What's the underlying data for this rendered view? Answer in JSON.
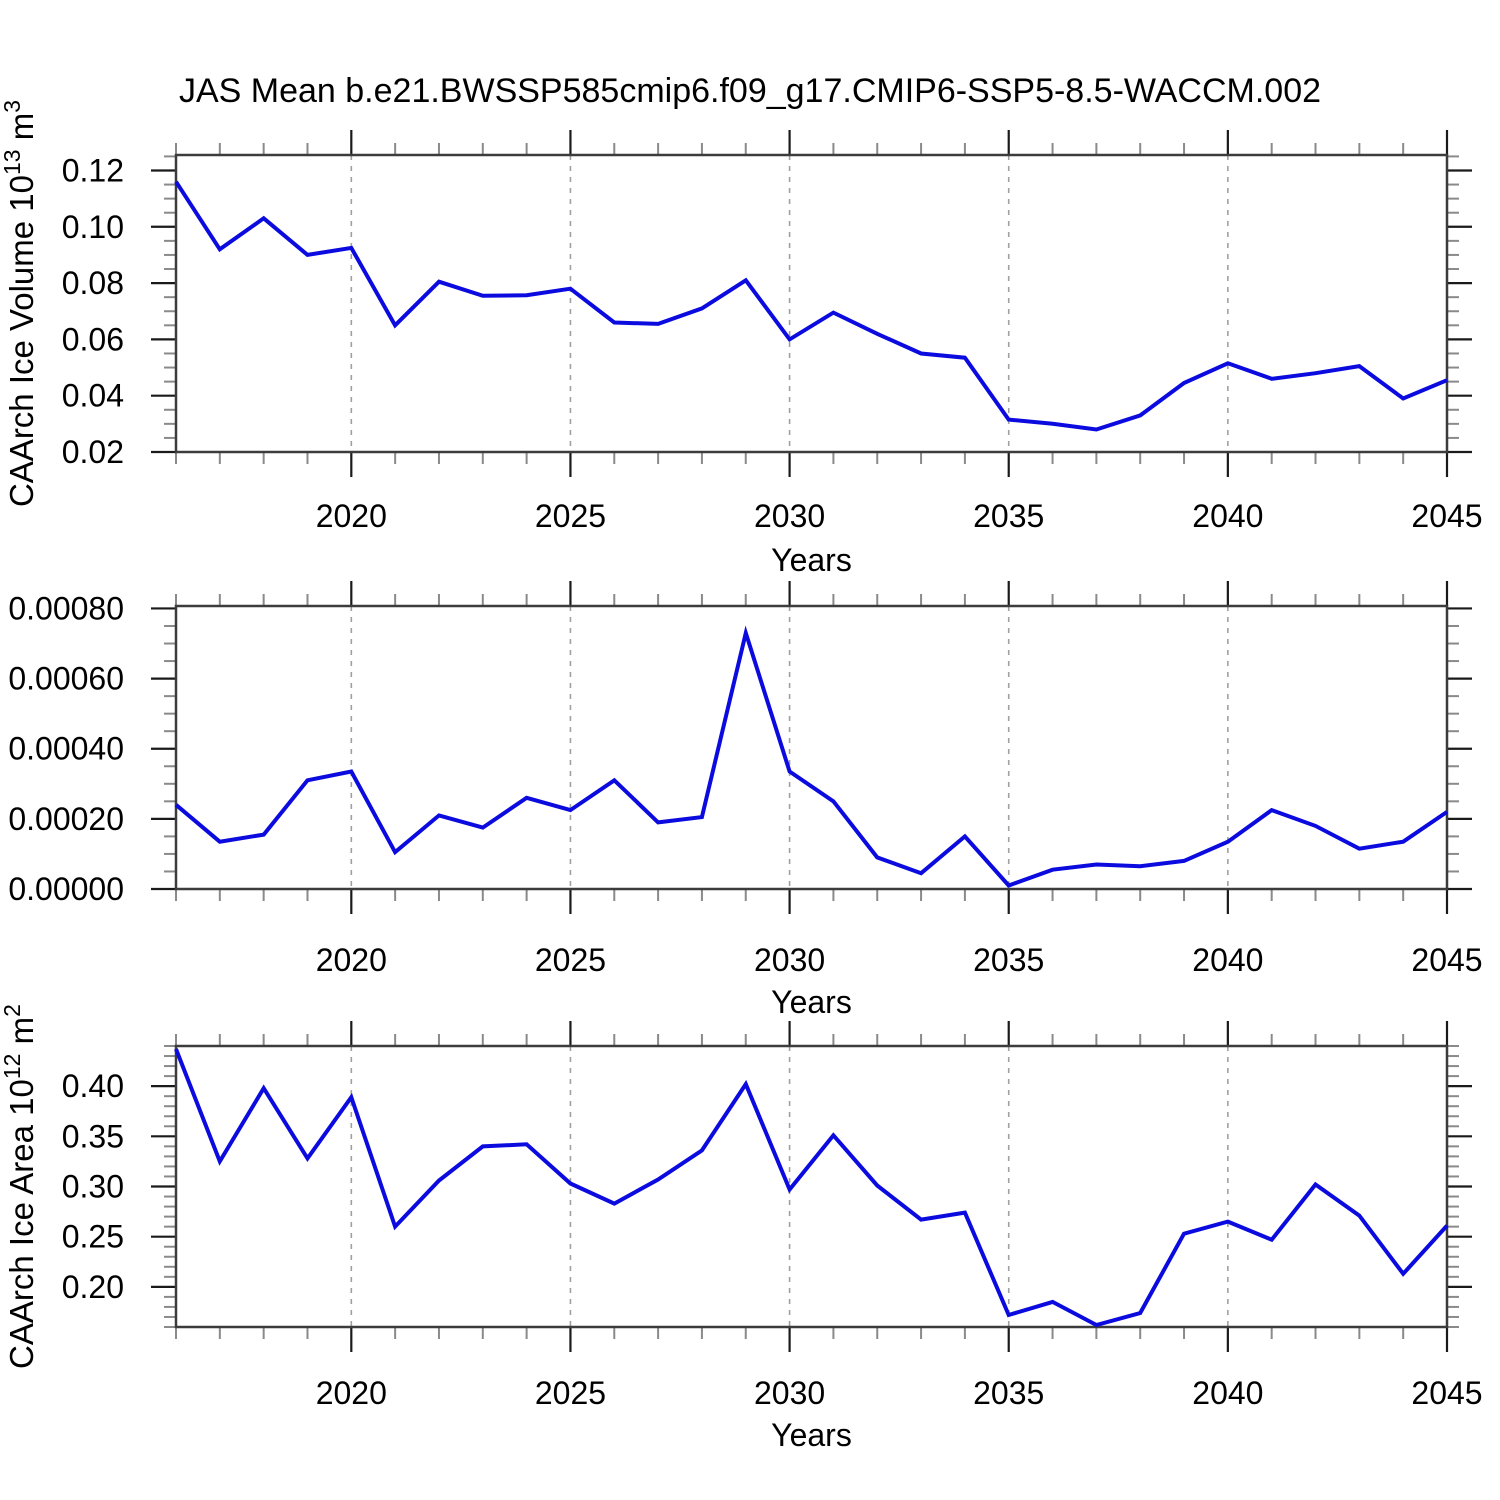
{
  "title": "JAS Mean b.e21.BWSSP585cmip6.f09_g17.CMIP6-SSP5-8.5-WACCM.002",
  "colors": {
    "line": "#0b0be0",
    "frame": "#3c3c3c",
    "major_tick": "#1a1a1a",
    "minor_tick": "#8a8a8a",
    "grid": "#a0a0a0",
    "text": "#000000"
  },
  "chart_data": [
    {
      "type": "line",
      "name": "caarch-ice-volume",
      "ylabel": "CAArch Ice Volume 10^13^ m^3^",
      "xlabel": "Years",
      "xlim": [
        2016,
        2045
      ],
      "ylim": [
        0.02,
        0.1255
      ],
      "xticks": [
        2020,
        2025,
        2030,
        2035,
        2040,
        2045
      ],
      "xtick_labels": [
        "2020",
        "2025",
        "2030",
        "2035",
        "2040",
        "2045"
      ],
      "grid_x": [
        2020,
        2025,
        2030,
        2035,
        2040
      ],
      "minor_x_step": 1,
      "yticks": [
        0.02,
        0.04,
        0.06,
        0.08,
        0.1,
        0.12
      ],
      "ytick_labels": [
        "0.02",
        "0.04",
        "0.06",
        "0.08",
        "0.10",
        "0.12"
      ],
      "minor_y_step": 0.005,
      "grid_on": "x-dashed",
      "legend": "none",
      "x": [
        2016,
        2017,
        2018,
        2019,
        2020,
        2021,
        2022,
        2023,
        2024,
        2025,
        2026,
        2027,
        2028,
        2029,
        2030,
        2031,
        2032,
        2033,
        2034,
        2035,
        2036,
        2037,
        2038,
        2039,
        2040,
        2041,
        2042,
        2043,
        2044,
        2045
      ],
      "values": [
        0.116,
        0.092,
        0.103,
        0.09,
        0.0925,
        0.065,
        0.0805,
        0.0755,
        0.0757,
        0.078,
        0.066,
        0.0655,
        0.071,
        0.081,
        0.06,
        0.0695,
        0.062,
        0.055,
        0.0535,
        0.0315,
        0.03,
        0.028,
        0.033,
        0.0445,
        0.0515,
        0.046,
        0.048,
        0.0505,
        0.039,
        0.0455
      ]
    },
    {
      "type": "line",
      "name": "middle-series",
      "ylabel": "",
      "xlabel": "Years",
      "xlim": [
        2016,
        2045
      ],
      "ylim": [
        0,
        0.000807
      ],
      "xticks": [
        2020,
        2025,
        2030,
        2035,
        2040,
        2045
      ],
      "xtick_labels": [
        "2020",
        "2025",
        "2030",
        "2035",
        "2040",
        "2045"
      ],
      "grid_x": [
        2020,
        2025,
        2030,
        2035,
        2040
      ],
      "minor_x_step": 1,
      "yticks": [
        0,
        0.0002,
        0.0004,
        0.0006,
        0.0008
      ],
      "ytick_labels": [
        "0.00000",
        "0.00020",
        "0.00040",
        "0.00060",
        "0.00080"
      ],
      "minor_y_step": 5e-05,
      "grid_on": "x-dashed",
      "legend": "none",
      "x": [
        2016,
        2017,
        2018,
        2019,
        2020,
        2021,
        2022,
        2023,
        2024,
        2025,
        2026,
        2027,
        2028,
        2029,
        2030,
        2031,
        2032,
        2033,
        2034,
        2035,
        2036,
        2037,
        2038,
        2039,
        2040,
        2041,
        2042,
        2043,
        2044,
        2045
      ],
      "values": [
        0.00024,
        0.000135,
        0.000155,
        0.00031,
        0.000335,
        0.000105,
        0.00021,
        0.000175,
        0.00026,
        0.000225,
        0.00031,
        0.00019,
        0.000205,
        0.00073,
        0.000335,
        0.00025,
        9e-05,
        4.5e-05,
        0.00015,
        1e-05,
        5.5e-05,
        7e-05,
        6.5e-05,
        8e-05,
        0.000135,
        0.000225,
        0.00018,
        0.000115,
        0.000135,
        0.00022
      ]
    },
    {
      "type": "line",
      "name": "caarch-ice-area",
      "ylabel": "CAArch Ice Area 10^12^ m^2^",
      "xlabel": "Years",
      "xlim": [
        2016,
        2045
      ],
      "ylim": [
        0.16,
        0.44
      ],
      "xticks": [
        2020,
        2025,
        2030,
        2035,
        2040,
        2045
      ],
      "xtick_labels": [
        "2020",
        "2025",
        "2030",
        "2035",
        "2040",
        "2045"
      ],
      "grid_x": [
        2020,
        2025,
        2030,
        2035,
        2040
      ],
      "minor_x_step": 1,
      "yticks": [
        0.2,
        0.25,
        0.3,
        0.35,
        0.4
      ],
      "ytick_labels": [
        "0.20",
        "0.25",
        "0.30",
        "0.35",
        "0.40"
      ],
      "minor_y_step": 0.01,
      "grid_on": "x-dashed",
      "legend": "none",
      "x": [
        2016,
        2017,
        2018,
        2019,
        2020,
        2021,
        2022,
        2023,
        2024,
        2025,
        2026,
        2027,
        2028,
        2029,
        2030,
        2031,
        2032,
        2033,
        2034,
        2035,
        2036,
        2037,
        2038,
        2039,
        2040,
        2041,
        2042,
        2043,
        2044,
        2045
      ],
      "values": [
        0.437,
        0.325,
        0.398,
        0.328,
        0.389,
        0.26,
        0.306,
        0.34,
        0.342,
        0.303,
        0.283,
        0.307,
        0.336,
        0.402,
        0.297,
        0.351,
        0.301,
        0.267,
        0.274,
        0.172,
        0.185,
        0.162,
        0.174,
        0.253,
        0.265,
        0.247,
        0.302,
        0.271,
        0.213,
        0.261
      ]
    }
  ]
}
